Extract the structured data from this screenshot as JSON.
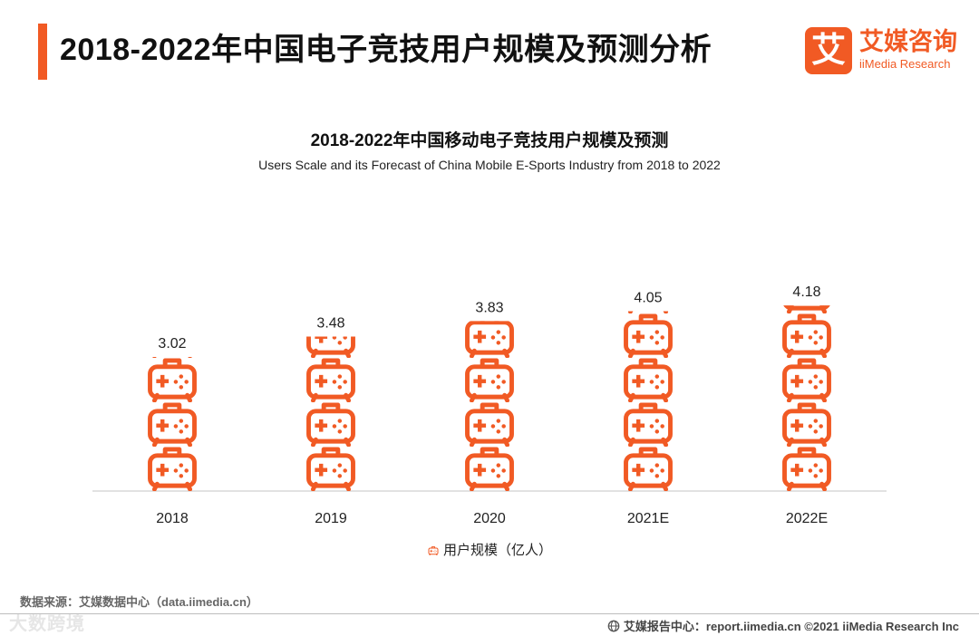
{
  "page": {
    "title": "2018-2022年中国电子竞技用户规模及预测分析"
  },
  "logo": {
    "mark": "艾",
    "name_cn": "艾媒咨询",
    "name_en": "iiMedia Research"
  },
  "chart_data": {
    "type": "bar",
    "title": "2018-2022年中国移动电子竞技用户规模及预测",
    "subtitle": "Users Scale and its Forecast of China  Mobile E-Sports Industry from 2018 to 2022",
    "categories": [
      "2018",
      "2019",
      "2020",
      "2021E",
      "2022E"
    ],
    "series": [
      {
        "name": "用户规模（亿人）",
        "values": [
          3.02,
          3.48,
          3.83,
          4.05,
          4.18
        ]
      }
    ],
    "value_labels": [
      "3.02",
      "3.48",
      "3.83",
      "4.05",
      "4.18"
    ],
    "xlabel": "",
    "ylabel": "",
    "ylim": [
      0,
      4.5
    ],
    "grid": false,
    "legend": "bottom-center",
    "mark": "gamepad-icon",
    "colors": {
      "bar": "#f15a24"
    }
  },
  "legend": {
    "label": "用户规模（亿人）"
  },
  "source": {
    "text": "数据来源：艾媒数据中心（data.iimedia.cn）"
  },
  "footer": {
    "text": "艾媒报告中心：report.iimedia.cn ©2021  iiMedia Research  Inc"
  },
  "watermark": {
    "text": "大数跨境"
  }
}
